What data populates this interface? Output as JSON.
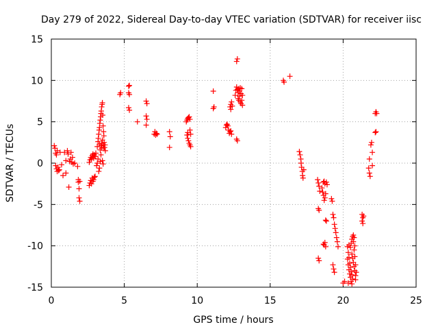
{
  "chart_data": {
    "type": "scatter",
    "title": "Day 279 of 2022, Sidereal Day-to-day VTEC variation (SDTVAR) for receiver iisc",
    "xlabel": "GPS time / hours",
    "ylabel": "SDTVAR / TECUs",
    "xlim": [
      0,
      25
    ],
    "ylim": [
      -15,
      15
    ],
    "xticks": [
      0,
      5,
      10,
      15,
      20,
      25
    ],
    "yticks": [
      -15,
      -10,
      -5,
      0,
      5,
      10,
      15
    ],
    "xtick_labels": [
      "0",
      "5",
      "10",
      "15",
      "20",
      "25"
    ],
    "ytick_labels": [
      "-15",
      "-10",
      "-5",
      "0",
      "5",
      "10",
      "15"
    ],
    "grid": true,
    "marker": "plus",
    "color": "#ff0000",
    "series": [
      {
        "name": "SDTVAR",
        "points": [
          [
            0.2,
            2.1
          ],
          [
            0.25,
            1.8
          ],
          [
            0.3,
            1.2
          ],
          [
            0.35,
            1.0
          ],
          [
            0.4,
            1.5
          ],
          [
            0.3,
            -0.3
          ],
          [
            0.35,
            -0.7
          ],
          [
            0.4,
            -1.0
          ],
          [
            0.45,
            -0.5
          ],
          [
            0.5,
            -0.9
          ],
          [
            0.55,
            -0.8
          ],
          [
            0.6,
            1.3
          ],
          [
            0.7,
            -0.2
          ],
          [
            0.8,
            -1.5
          ],
          [
            0.9,
            1.3
          ],
          [
            1.0,
            -1.2
          ],
          [
            1.0,
            0.3
          ],
          [
            1.1,
            1.5
          ],
          [
            1.15,
            1.1
          ],
          [
            1.2,
            -2.9
          ],
          [
            1.25,
            0.2
          ],
          [
            1.3,
            0.5
          ],
          [
            1.35,
            1.3
          ],
          [
            1.4,
            0.1
          ],
          [
            1.45,
            0.7
          ],
          [
            1.5,
            -0.1
          ],
          [
            1.6,
            0.0
          ],
          [
            1.8,
            -0.4
          ],
          [
            1.85,
            -2.0
          ],
          [
            1.85,
            -2.3
          ],
          [
            1.9,
            -3.1
          ],
          [
            1.9,
            -4.2
          ],
          [
            1.95,
            -4.6
          ],
          [
            1.95,
            -2.2
          ],
          [
            2.6,
            -2.7
          ],
          [
            2.65,
            -2.4
          ],
          [
            2.7,
            -2.1
          ],
          [
            2.75,
            -2.5
          ],
          [
            2.8,
            -1.8
          ],
          [
            2.85,
            -2.2
          ],
          [
            2.9,
            -2.0
          ],
          [
            2.95,
            -1.7
          ],
          [
            3.0,
            -1.6
          ],
          [
            2.6,
            0.1
          ],
          [
            2.65,
            0.4
          ],
          [
            2.7,
            0.7
          ],
          [
            2.75,
            0.5
          ],
          [
            2.8,
            0.9
          ],
          [
            2.85,
            1.1
          ],
          [
            2.9,
            0.6
          ],
          [
            2.95,
            1.0
          ],
          [
            3.0,
            0.8
          ],
          [
            3.05,
            1.2
          ],
          [
            3.1,
            -0.3
          ],
          [
            3.15,
            0.0
          ],
          [
            3.2,
            0.5
          ],
          [
            3.25,
            -1.0
          ],
          [
            3.3,
            -0.6
          ],
          [
            3.35,
            0.2
          ],
          [
            3.4,
            1.0
          ],
          [
            3.45,
            1.8
          ],
          [
            3.5,
            0.3
          ],
          [
            3.55,
            -0.1
          ],
          [
            3.15,
            2.0
          ],
          [
            3.2,
            2.6
          ],
          [
            3.22,
            3.0
          ],
          [
            3.25,
            3.5
          ],
          [
            3.28,
            4.0
          ],
          [
            3.3,
            4.3
          ],
          [
            3.32,
            4.8
          ],
          [
            3.35,
            5.2
          ],
          [
            3.38,
            5.6
          ],
          [
            3.4,
            6.0
          ],
          [
            3.42,
            6.3
          ],
          [
            3.45,
            6.8
          ],
          [
            3.48,
            7.1
          ],
          [
            3.5,
            7.3
          ],
          [
            3.52,
            5.8
          ],
          [
            3.55,
            4.5
          ],
          [
            3.58,
            3.8
          ],
          [
            3.6,
            3.3
          ],
          [
            3.62,
            2.5
          ],
          [
            3.65,
            1.9
          ],
          [
            3.68,
            2.2
          ],
          [
            3.7,
            1.5
          ],
          [
            3.3,
            2.3
          ],
          [
            3.35,
            1.6
          ],
          [
            3.4,
            2.1
          ],
          [
            3.45,
            2.4
          ],
          [
            3.5,
            2.8
          ],
          [
            3.55,
            2.2
          ],
          [
            3.6,
            1.9
          ],
          [
            4.7,
            8.3
          ],
          [
            4.75,
            8.5
          ],
          [
            5.3,
            9.3
          ],
          [
            5.35,
            9.4
          ],
          [
            5.3,
            8.5
          ],
          [
            5.35,
            8.3
          ],
          [
            5.3,
            6.7
          ],
          [
            5.35,
            6.4
          ],
          [
            5.9,
            5.0
          ],
          [
            6.5,
            7.5
          ],
          [
            6.55,
            7.2
          ],
          [
            6.5,
            5.7
          ],
          [
            6.55,
            5.3
          ],
          [
            6.5,
            4.6
          ],
          [
            7.05,
            3.5
          ],
          [
            7.1,
            3.8
          ],
          [
            7.15,
            3.4
          ],
          [
            7.2,
            3.6
          ],
          [
            7.25,
            3.5
          ],
          [
            8.1,
            3.8
          ],
          [
            8.15,
            3.2
          ],
          [
            8.1,
            1.9
          ],
          [
            9.25,
            5.0
          ],
          [
            9.3,
            5.2
          ],
          [
            9.35,
            5.4
          ],
          [
            9.4,
            5.5
          ],
          [
            9.45,
            5.6
          ],
          [
            9.5,
            5.3
          ],
          [
            9.3,
            3.4
          ],
          [
            9.35,
            3.0
          ],
          [
            9.4,
            2.7
          ],
          [
            9.45,
            2.4
          ],
          [
            9.5,
            2.2
          ],
          [
            9.55,
            2.0
          ],
          [
            9.35,
            3.7
          ],
          [
            9.5,
            4.0
          ],
          [
            9.55,
            3.5
          ],
          [
            11.1,
            8.7
          ],
          [
            11.15,
            6.8
          ],
          [
            11.1,
            6.6
          ],
          [
            11.95,
            4.3
          ],
          [
            12.0,
            4.6
          ],
          [
            12.05,
            4.7
          ],
          [
            12.1,
            4.5
          ],
          [
            12.15,
            4.0
          ],
          [
            12.2,
            3.6
          ],
          [
            12.25,
            3.8
          ],
          [
            12.3,
            3.9
          ],
          [
            12.35,
            3.5
          ],
          [
            12.25,
            6.8
          ],
          [
            12.3,
            7.1
          ],
          [
            12.35,
            7.4
          ],
          [
            12.3,
            6.5
          ],
          [
            12.4,
            6.9
          ],
          [
            12.6,
            8.2
          ],
          [
            12.65,
            8.8
          ],
          [
            12.7,
            9.2
          ],
          [
            12.75,
            8.9
          ],
          [
            12.8,
            8.5
          ],
          [
            12.85,
            9.0
          ],
          [
            12.9,
            8.7
          ],
          [
            12.95,
            9.1
          ],
          [
            13.0,
            8.4
          ],
          [
            12.8,
            7.8
          ],
          [
            12.85,
            7.6
          ],
          [
            12.9,
            8.1
          ],
          [
            12.95,
            7.4
          ],
          [
            13.0,
            7.2
          ],
          [
            13.05,
            7.6
          ],
          [
            13.1,
            7.0
          ],
          [
            13.05,
            9.0
          ],
          [
            13.1,
            8.2
          ],
          [
            12.7,
            12.3
          ],
          [
            12.75,
            12.6
          ],
          [
            12.7,
            2.9
          ],
          [
            12.75,
            2.7
          ],
          [
            15.9,
            10.0
          ],
          [
            15.95,
            9.8
          ],
          [
            16.35,
            10.5
          ],
          [
            17.0,
            1.4
          ],
          [
            17.05,
            1.0
          ],
          [
            17.1,
            0.5
          ],
          [
            17.12,
            0.0
          ],
          [
            17.15,
            -0.5
          ],
          [
            17.2,
            -1.0
          ],
          [
            17.22,
            -1.5
          ],
          [
            17.25,
            -1.8
          ],
          [
            17.3,
            -0.8
          ],
          [
            18.25,
            -2.0
          ],
          [
            18.3,
            -2.4
          ],
          [
            18.35,
            -2.8
          ],
          [
            18.4,
            -3.4
          ],
          [
            18.3,
            -5.5
          ],
          [
            18.35,
            -5.7
          ],
          [
            18.3,
            -11.5
          ],
          [
            18.35,
            -11.8
          ],
          [
            18.55,
            -3.0
          ],
          [
            18.6,
            -3.5
          ],
          [
            18.65,
            -3.9
          ],
          [
            18.7,
            -4.5
          ],
          [
            18.75,
            -4.2
          ],
          [
            18.8,
            -3.7
          ],
          [
            18.65,
            -2.3
          ],
          [
            18.7,
            -2.2
          ],
          [
            18.75,
            -2.5
          ],
          [
            18.85,
            -2.3
          ],
          [
            18.9,
            -2.6
          ],
          [
            18.7,
            -9.9
          ],
          [
            18.75,
            -9.6
          ],
          [
            18.8,
            -10.1
          ],
          [
            18.65,
            -9.8
          ],
          [
            18.8,
            -6.9
          ],
          [
            18.85,
            -7.0
          ],
          [
            19.2,
            -4.3
          ],
          [
            19.25,
            -4.6
          ],
          [
            19.3,
            -6.2
          ],
          [
            19.35,
            -6.6
          ],
          [
            19.4,
            -7.4
          ],
          [
            19.45,
            -7.9
          ],
          [
            19.5,
            -8.4
          ],
          [
            19.55,
            -9.0
          ],
          [
            19.6,
            -9.5
          ],
          [
            19.65,
            -10.1
          ],
          [
            19.3,
            -12.3
          ],
          [
            19.35,
            -12.8
          ],
          [
            19.4,
            -13.2
          ],
          [
            20.0,
            -14.5
          ],
          [
            20.1,
            -14.3
          ],
          [
            20.3,
            -10.1
          ],
          [
            20.35,
            -10.8
          ],
          [
            20.4,
            -11.4
          ],
          [
            20.45,
            -12.1
          ],
          [
            20.5,
            -12.6
          ],
          [
            20.55,
            -13.1
          ],
          [
            20.6,
            -13.5
          ],
          [
            20.65,
            -14.0
          ],
          [
            20.4,
            -12.9
          ],
          [
            20.45,
            -13.4
          ],
          [
            20.5,
            -13.8
          ],
          [
            20.55,
            -14.3
          ],
          [
            20.6,
            -14.6
          ],
          [
            20.5,
            -10.2
          ],
          [
            20.55,
            -9.7
          ],
          [
            20.6,
            -9.2
          ],
          [
            20.65,
            -8.9
          ],
          [
            20.7,
            -8.7
          ],
          [
            20.6,
            -11.0
          ],
          [
            20.65,
            -11.5
          ],
          [
            20.7,
            -12.0
          ],
          [
            20.75,
            -12.5
          ],
          [
            20.8,
            -13.0
          ],
          [
            20.75,
            -10.5
          ],
          [
            20.8,
            -10.0
          ],
          [
            20.8,
            -11.3
          ],
          [
            20.85,
            -12.3
          ],
          [
            20.85,
            -13.6
          ],
          [
            20.85,
            -14.1
          ],
          [
            20.9,
            -13.2
          ],
          [
            20.7,
            -9.5
          ],
          [
            20.75,
            -9.0
          ],
          [
            20.3,
            -11.6
          ],
          [
            20.35,
            -12.3
          ],
          [
            20.35,
            -14.5
          ],
          [
            20.4,
            -9.9
          ],
          [
            21.3,
            -6.2
          ],
          [
            21.35,
            -6.6
          ],
          [
            21.3,
            -7.0
          ],
          [
            21.35,
            -7.3
          ],
          [
            21.4,
            -6.4
          ],
          [
            21.75,
            -0.6
          ],
          [
            21.8,
            -1.2
          ],
          [
            21.85,
            -1.6
          ],
          [
            21.8,
            0.5
          ],
          [
            21.9,
            2.2
          ],
          [
            21.95,
            2.5
          ],
          [
            22.0,
            -0.3
          ],
          [
            22.0,
            1.3
          ],
          [
            22.2,
            3.7
          ],
          [
            22.25,
            3.8
          ],
          [
            22.2,
            6.0
          ],
          [
            22.25,
            6.2
          ],
          [
            22.3,
            6.0
          ]
        ]
      }
    ]
  }
}
